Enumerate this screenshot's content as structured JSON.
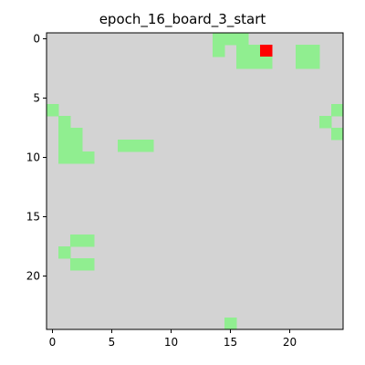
{
  "chart_data": {
    "type": "heatmap",
    "title": "epoch_16_board_3_start",
    "xlabel": "",
    "ylabel": "",
    "rows": 25,
    "cols": 25,
    "xlim": [
      -0.5,
      24.5
    ],
    "ylim": [
      24.5,
      -0.5
    ],
    "xticks": [
      0,
      5,
      10,
      15,
      20
    ],
    "yticks": [
      0,
      5,
      10,
      15,
      20
    ],
    "background_value": 0,
    "legend": [
      {
        "value": 0,
        "label": "empty",
        "color": "#d3d3d3"
      },
      {
        "value": 1,
        "label": "green",
        "color": "#90ee90"
      },
      {
        "value": 2,
        "label": "red",
        "color": "#ff0000"
      }
    ],
    "cells": [
      {
        "row": 0,
        "col": 14,
        "value": 1
      },
      {
        "row": 0,
        "col": 15,
        "value": 1
      },
      {
        "row": 0,
        "col": 16,
        "value": 1
      },
      {
        "row": 1,
        "col": 14,
        "value": 1
      },
      {
        "row": 1,
        "col": 16,
        "value": 1
      },
      {
        "row": 1,
        "col": 17,
        "value": 1
      },
      {
        "row": 1,
        "col": 18,
        "value": 2
      },
      {
        "row": 1,
        "col": 21,
        "value": 1
      },
      {
        "row": 1,
        "col": 22,
        "value": 1
      },
      {
        "row": 2,
        "col": 16,
        "value": 1
      },
      {
        "row": 2,
        "col": 17,
        "value": 1
      },
      {
        "row": 2,
        "col": 18,
        "value": 1
      },
      {
        "row": 2,
        "col": 21,
        "value": 1
      },
      {
        "row": 2,
        "col": 22,
        "value": 1
      },
      {
        "row": 6,
        "col": 0,
        "value": 1
      },
      {
        "row": 6,
        "col": 24,
        "value": 1
      },
      {
        "row": 7,
        "col": 1,
        "value": 1
      },
      {
        "row": 7,
        "col": 23,
        "value": 1
      },
      {
        "row": 8,
        "col": 1,
        "value": 1
      },
      {
        "row": 8,
        "col": 2,
        "value": 1
      },
      {
        "row": 8,
        "col": 24,
        "value": 1
      },
      {
        "row": 9,
        "col": 1,
        "value": 1
      },
      {
        "row": 9,
        "col": 2,
        "value": 1
      },
      {
        "row": 9,
        "col": 6,
        "value": 1
      },
      {
        "row": 9,
        "col": 7,
        "value": 1
      },
      {
        "row": 9,
        "col": 8,
        "value": 1
      },
      {
        "row": 10,
        "col": 1,
        "value": 1
      },
      {
        "row": 10,
        "col": 2,
        "value": 1
      },
      {
        "row": 10,
        "col": 3,
        "value": 1
      },
      {
        "row": 17,
        "col": 2,
        "value": 1
      },
      {
        "row": 17,
        "col": 3,
        "value": 1
      },
      {
        "row": 18,
        "col": 1,
        "value": 1
      },
      {
        "row": 19,
        "col": 2,
        "value": 1
      },
      {
        "row": 19,
        "col": 3,
        "value": 1
      },
      {
        "row": 24,
        "col": 15,
        "value": 1
      }
    ]
  }
}
